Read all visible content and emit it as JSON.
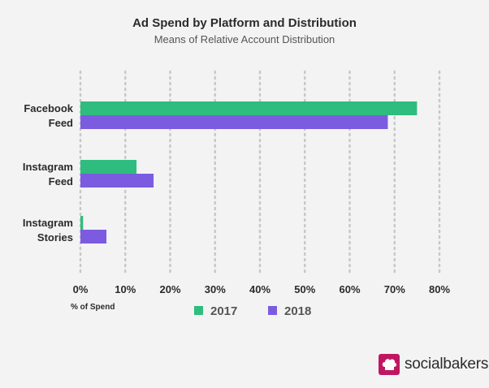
{
  "chart_data": {
    "type": "bar",
    "orientation": "horizontal",
    "title": "Ad Spend by Platform and Distribution",
    "subtitle": "Means of Relative Account Distribution",
    "categories": [
      [
        "Facebook",
        "Feed"
      ],
      [
        "Instagram",
        "Feed"
      ],
      [
        "Instagram",
        "Stories"
      ]
    ],
    "series": [
      {
        "name": "2017",
        "color": "#2ebd7e",
        "values": [
          75,
          12.5,
          0.6
        ]
      },
      {
        "name": "2018",
        "color": "#7b5ce0",
        "values": [
          68.5,
          16.3,
          5.8
        ]
      }
    ],
    "xlabel": "% of Spend",
    "xlim": [
      0,
      80
    ],
    "xticks": [
      0,
      10,
      20,
      30,
      40,
      50,
      60,
      70,
      80
    ],
    "tick_suffix": "%",
    "grid": true,
    "legend_position": "bottom-center"
  },
  "brand": {
    "name": "socialbakers",
    "icon": "chef-hat-icon",
    "color": "#c01662"
  }
}
